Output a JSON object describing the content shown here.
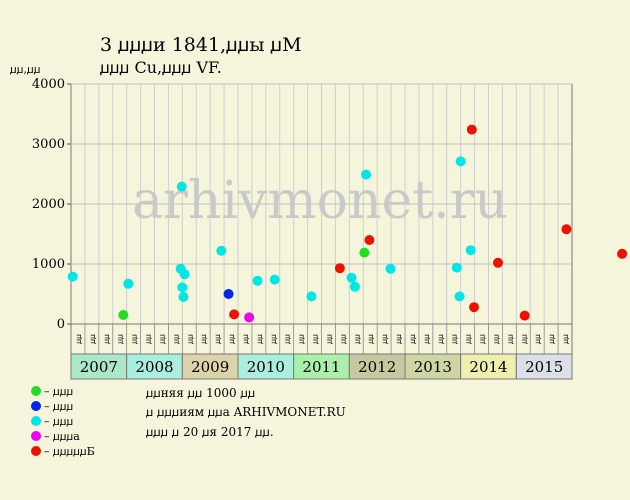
{
  "title": "3 ꙡꙡꙡи 1841,ꙡꙡы ꙡM",
  "subtitle": "ꙡꙡꙡ Cu,ꙡꙡꙡ VF.",
  "ylabel": "ꙡꙡ,ꙡꙡ",
  "watermark": "arhivmonet.ru",
  "notes": [
    "ꙡꙡняя ꙡꙡ 1000 ꙡꙡ",
    "ꙡ ꙡꙡꙡиям ꙡꙡа ARHIVMONET.RU",
    "ꙡꙡꙡ ꙡ 20 ꙡя 2017 ꙡꙡ."
  ],
  "colors": {
    "background": "#f5f5dc",
    "plot_bg": "#f5f5dc",
    "grid": "#c8c8c8",
    "watermark": "#c9c9c9"
  },
  "chart_data": {
    "type": "scatter",
    "ylim": [
      0,
      4000
    ],
    "yticks": [
      0,
      1000,
      2000,
      3000,
      4000
    ],
    "years": [
      {
        "label": "2007",
        "color": "#aae8c8"
      },
      {
        "label": "2008",
        "color": "#aaeedd"
      },
      {
        "label": "2009",
        "color": "#ddd3a8"
      },
      {
        "label": "2010",
        "color": "#aaeedd"
      },
      {
        "label": "2011",
        "color": "#aaf0aa"
      },
      {
        "label": "2012",
        "color": "#c8c8a0"
      },
      {
        "label": "2013",
        "color": "#cfd4a3"
      },
      {
        "label": "2014",
        "color": "#eef0b0"
      },
      {
        "label": "2015",
        "color": "#dbe0e8"
      }
    ],
    "subperiods": [
      "ꙡꙡ",
      "ꙡꙡ",
      "ꙡꙡ",
      "ꙡꙡ"
    ],
    "legend": [
      {
        "label": "– ꙡꙡꙡ",
        "color": "#22dd22"
      },
      {
        "label": "– ꙡꙡꙡ",
        "color": "#0022ee"
      },
      {
        "label": "– ꙡꙡꙡ",
        "color": "#00e5e5"
      },
      {
        "label": "– ꙡꙡꙡа",
        "color": "#ee00ee"
      },
      {
        "label": "– ꙡꙡꙡꙡꙡБ",
        "color": "#ee1100"
      }
    ],
    "series": [
      {
        "color": "#00e5e5",
        "points": [
          [
            0.03,
            790
          ],
          [
            1.03,
            670
          ],
          [
            1.97,
            920
          ],
          [
            1.99,
            2290
          ],
          [
            2.0,
            610
          ],
          [
            2.02,
            450
          ],
          [
            2.04,
            830
          ],
          [
            2.7,
            1220
          ],
          [
            3.35,
            720
          ],
          [
            3.66,
            740
          ],
          [
            4.32,
            460
          ],
          [
            5.3,
            2490
          ],
          [
            5.04,
            770
          ],
          [
            5.1,
            620
          ],
          [
            5.74,
            920
          ],
          [
            6.93,
            940
          ],
          [
            6.98,
            460
          ],
          [
            7.0,
            2710
          ],
          [
            7.18,
            1230
          ]
        ]
      },
      {
        "color": "#22dd22",
        "points": [
          [
            0.94,
            150
          ],
          [
            5.27,
            1190
          ]
        ]
      },
      {
        "color": "#0022ee",
        "points": [
          [
            2.83,
            500
          ]
        ]
      },
      {
        "color": "#ee00ee",
        "points": [
          [
            3.2,
            110
          ]
        ]
      },
      {
        "color": "#ee1100",
        "points": [
          [
            2.93,
            160
          ],
          [
            4.83,
            930
          ],
          [
            5.36,
            1400
          ],
          [
            7.2,
            3240
          ],
          [
            7.24,
            280
          ],
          [
            7.67,
            1020
          ],
          [
            8.15,
            140
          ],
          [
            8.9,
            1580
          ],
          [
            9.9,
            1170
          ]
        ]
      }
    ]
  }
}
